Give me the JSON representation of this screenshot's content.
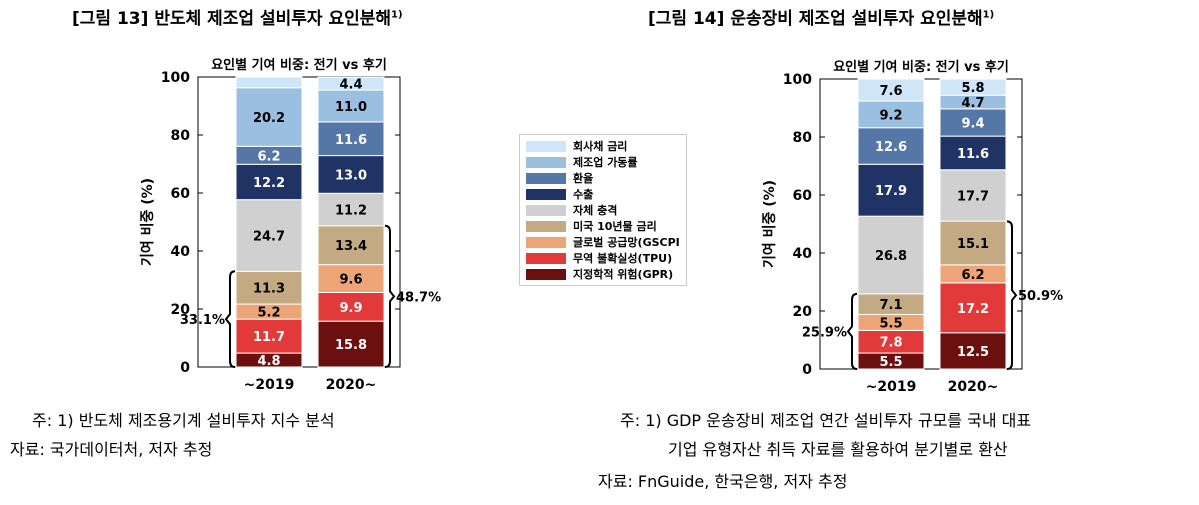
{
  "figures": [
    {
      "caption": "[그림 13] 반도체 제조업 설비투자 요인분해",
      "caption_sup": "1)",
      "note_line1": "주: 1) 반도체 제조용기계 설비투자 지수 분석",
      "note_line2": "",
      "source": "자료: 국가데이터처, 저자 추정"
    },
    {
      "caption": "[그림 14] 운송장비 제조업 설비투자 요인분해",
      "caption_sup": "1)",
      "note_line1": "주: 1) GDP 운송장비 제조업 연간 설비투자 규모를 국내 대표",
      "note_line2": "기업 유형자산 취득 자료를 활용하여 분기별로 환산",
      "source": "자료: FnGuide, 한국은행, 저자 추정"
    }
  ],
  "legend": [
    {
      "label": "회사채 금리",
      "color": "#cfe6f9"
    },
    {
      "label": "제조업 가동률",
      "color": "#9bbfe0"
    },
    {
      "label": "환율",
      "color": "#5577a8"
    },
    {
      "label": "수출",
      "color": "#1f3465"
    },
    {
      "label": "자체 충격",
      "color": "#d0d0d0"
    },
    {
      "label": "미국 10년물 금리",
      "color": "#c3aa82"
    },
    {
      "label": "글로벌 공급망(GSCPI",
      "color": "#eda477"
    },
    {
      "label": "무역 불확실성(TPU)",
      "color": "#e23a3a"
    },
    {
      "label": "지정학적 위험(GPR)",
      "color": "#6b0f0f"
    }
  ],
  "chart_data": [
    {
      "type": "bar",
      "stacked": true,
      "title": "요인별 기여 비중: 전기 vs 후기",
      "ylabel": "기여 비중 (%)",
      "xlabel": "",
      "ylim": [
        0,
        100
      ],
      "yticks": [
        0,
        20,
        40,
        60,
        80,
        100
      ],
      "categories": [
        "~2019",
        "2020~"
      ],
      "series": [
        {
          "name": "지정학적 위험(GPR)",
          "values": [
            4.8,
            15.8
          ]
        },
        {
          "name": "무역 불확실성(TPU)",
          "values": [
            11.7,
            9.9
          ]
        },
        {
          "name": "글로벌 공급망(GSCPI",
          "values": [
            5.2,
            9.6
          ]
        },
        {
          "name": "미국 10년물 금리",
          "values": [
            11.3,
            13.4
          ]
        },
        {
          "name": "자체 충격",
          "values": [
            24.7,
            11.2
          ]
        },
        {
          "name": "수출",
          "values": [
            12.2,
            13.0
          ]
        },
        {
          "name": "환율",
          "values": [
            6.2,
            11.6
          ]
        },
        {
          "name": "제조업 가동률",
          "values": [
            20.2,
            11.0
          ]
        },
        {
          "name": "회사채 금리",
          "values": [
            3.9,
            4.4
          ]
        }
      ],
      "labels": [
        [
          "4.8",
          "15.8"
        ],
        [
          "11.7",
          "9.9"
        ],
        [
          "5.2",
          "9.6"
        ],
        [
          "11.3",
          "13.4"
        ],
        [
          "24.7",
          "11.2"
        ],
        [
          "12.2",
          "13.0"
        ],
        [
          "6.2",
          "11.6"
        ],
        [
          "20.2",
          "11.0"
        ],
        [
          "",
          "4.4"
        ]
      ],
      "braces": [
        {
          "bar": 0,
          "side": "left",
          "top": 33.0,
          "text": "33.1%"
        },
        {
          "bar": 1,
          "side": "right",
          "top": 48.7,
          "text": "48.7%"
        }
      ]
    },
    {
      "type": "bar",
      "stacked": true,
      "title": "요인별 기여 비중: 전기 vs 후기",
      "ylabel": "기여 비중 (%)",
      "xlabel": "",
      "ylim": [
        0,
        100
      ],
      "yticks": [
        0,
        20,
        40,
        60,
        80,
        100
      ],
      "categories": [
        "~2019",
        "2020~"
      ],
      "series": [
        {
          "name": "지정학적 위험(GPR)",
          "values": [
            5.5,
            12.5
          ]
        },
        {
          "name": "무역 불확실성(TPU)",
          "values": [
            7.8,
            17.2
          ]
        },
        {
          "name": "글로벌 공급망(GSCPI",
          "values": [
            5.5,
            6.2
          ]
        },
        {
          "name": "미국 10년물 금리",
          "values": [
            7.1,
            15.1
          ]
        },
        {
          "name": "자체 충격",
          "values": [
            26.8,
            17.7
          ]
        },
        {
          "name": "수출",
          "values": [
            17.9,
            11.6
          ]
        },
        {
          "name": "환율",
          "values": [
            12.6,
            9.4
          ]
        },
        {
          "name": "제조업 가동률",
          "values": [
            9.2,
            4.7
          ]
        },
        {
          "name": "회사채 금리",
          "values": [
            7.6,
            5.8
          ]
        }
      ],
      "labels": [
        [
          "5.5",
          "12.5"
        ],
        [
          "7.8",
          "17.2"
        ],
        [
          "5.5",
          "6.2"
        ],
        [
          "7.1",
          "15.1"
        ],
        [
          "26.8",
          "17.7"
        ],
        [
          "17.9",
          "11.6"
        ],
        [
          "12.6",
          "9.4"
        ],
        [
          "9.2",
          "4.7"
        ],
        [
          "7.6",
          "5.8"
        ]
      ],
      "braces": [
        {
          "bar": 0,
          "side": "left",
          "top": 25.9,
          "text": "25.9%"
        },
        {
          "bar": 1,
          "side": "right",
          "top": 50.9,
          "text": "50.9%"
        }
      ]
    }
  ]
}
